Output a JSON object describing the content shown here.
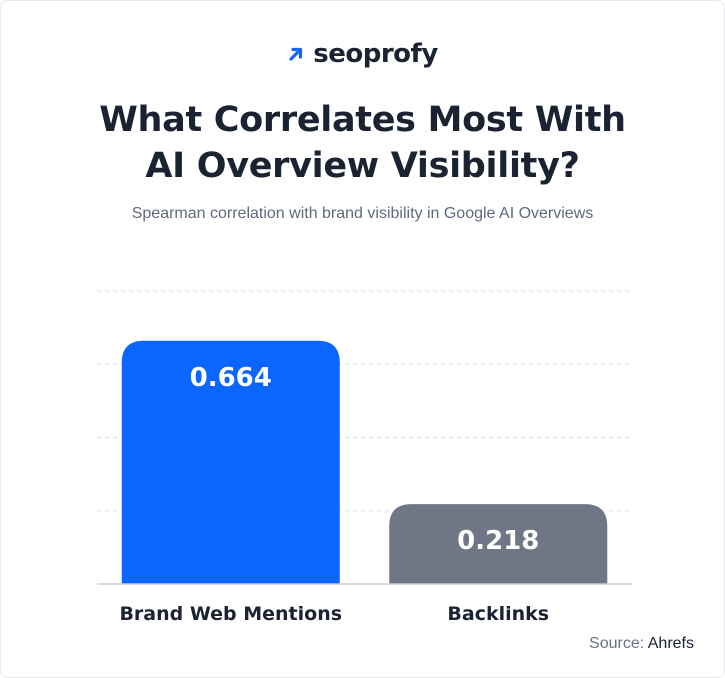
{
  "brand": {
    "name": "seoprofy",
    "accent": "#1466f5",
    "icon": "arrow-up-right-icon"
  },
  "header": {
    "title_line1": "What Correlates Most With",
    "title_line2": "AI Overview Visibility?",
    "subtitle": "Spearman correlation with brand visibility in Google AI Overviews"
  },
  "footer": {
    "source_label": "Source:",
    "source_value": "Ahrefs"
  },
  "chart_data": {
    "type": "bar",
    "title": "What Correlates Most With AI Overview Visibility?",
    "subtitle": "Spearman correlation with brand visibility in Google AI Overviews",
    "categories": [
      "Brand Web Mentions",
      "Backlinks"
    ],
    "values": [
      0.664,
      0.218
    ],
    "value_labels": [
      "0.664",
      "0.218"
    ],
    "colors": [
      "#0a66ff",
      "#6f7787"
    ],
    "ylim": [
      0,
      0.8
    ],
    "grid": true,
    "grid_style": "dashed",
    "legend": "none"
  }
}
